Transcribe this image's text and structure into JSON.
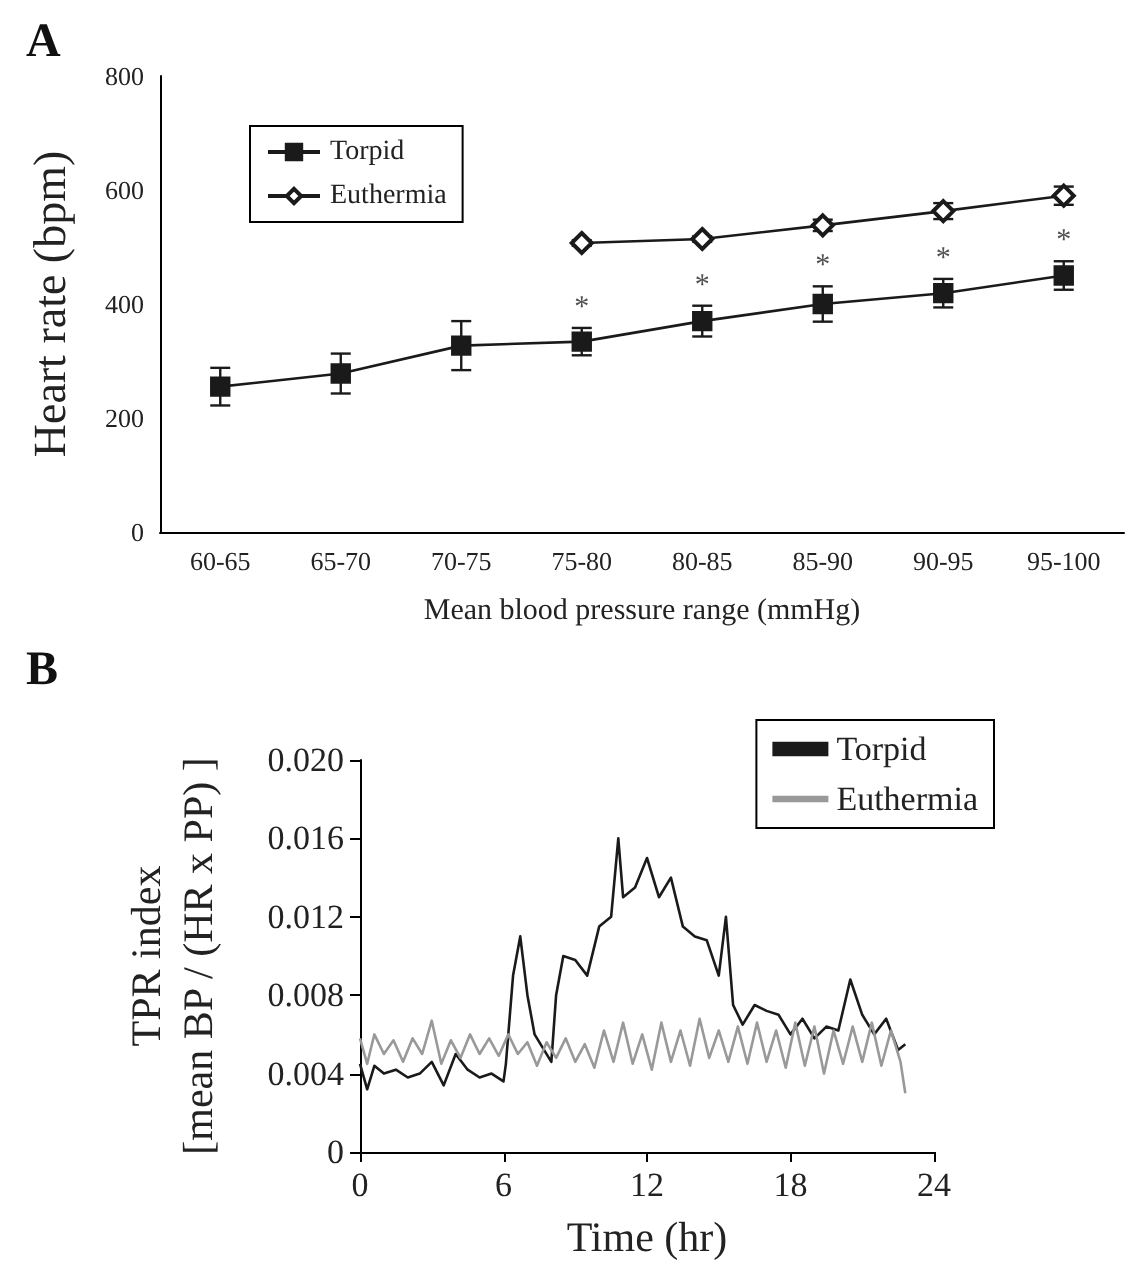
{
  "chart_data": [
    {
      "type": "line",
      "title": "A",
      "xlabel": "Mean blood pressure range (mmHg)",
      "ylabel": "Heart rate (bpm)",
      "categories": [
        "60-65",
        "65-70",
        "70-75",
        "75-80",
        "80-85",
        "85-90",
        "90-95",
        "95-100"
      ],
      "ylim": [
        0,
        800
      ],
      "yticks": [
        0,
        200,
        400,
        600,
        800
      ],
      "legend": "top left",
      "grid": false,
      "series": [
        {
          "name": "Torpid",
          "color": "#1a1a1a",
          "marker": "square",
          "values": [
            255,
            278,
            327,
            334,
            370,
            400,
            419,
            450
          ],
          "errors": [
            33,
            35,
            43,
            24,
            27,
            31,
            25,
            25
          ]
        },
        {
          "name": "Euthermia",
          "color": "#1a1a1a",
          "marker": "diamond",
          "values": [
            null,
            null,
            null,
            507,
            514,
            538,
            563,
            590
          ],
          "errors": [
            null,
            null,
            null,
            5,
            5,
            10,
            14,
            16
          ]
        }
      ],
      "annotations": [
        {
          "text": "*",
          "x": "75-80",
          "y": 358
        },
        {
          "text": "*",
          "x": "80-85",
          "y": 397
        },
        {
          "text": "*",
          "x": "85-90",
          "y": 431
        },
        {
          "text": "*",
          "x": "90-95",
          "y": 444
        },
        {
          "text": "*",
          "x": "95-100",
          "y": 475
        }
      ]
    },
    {
      "type": "line",
      "title": "B",
      "xlabel": "Time (hr)",
      "ylabel": "TPR index\n[mean BP / (HR x PP) ]",
      "xlim": [
        0,
        24
      ],
      "xticks": [
        0,
        6,
        12,
        18,
        24
      ],
      "ylim": [
        0,
        0.02
      ],
      "yticks": [
        {
          "value": 0,
          "label": "0"
        },
        {
          "value": 0.004,
          "label": "0.004"
        },
        {
          "value": 0.008,
          "label": "0.008"
        },
        {
          "value": 0.012,
          "label": "0.012"
        },
        {
          "value": 0.016,
          "label": "0.016"
        },
        {
          "value": 0.02,
          "label": "0.020"
        }
      ],
      "legend": "top right",
      "marker": "none",
      "grid": false,
      "series": [
        {
          "name": "Torpid",
          "color": "#1a1a1a",
          "x": [
            0,
            0.3,
            0.6,
            1,
            1.5,
            2,
            2.5,
            3,
            3.5,
            4,
            4.5,
            5,
            5.5,
            6,
            6.1,
            6.4,
            6.7,
            7,
            7.3,
            7.7,
            8,
            8.2,
            8.5,
            9,
            9.5,
            10,
            10.5,
            10.8,
            11,
            11.5,
            12,
            12.5,
            13,
            13.5,
            14,
            14.5,
            15,
            15.3,
            15.6,
            16,
            16.5,
            17,
            17.5,
            18,
            18.5,
            19,
            19.5,
            20,
            20.5,
            21,
            21.5,
            22,
            22.5,
            22.8
          ],
          "values": [
            0.0045,
            0.0032,
            0.0044,
            0.004,
            0.0042,
            0.0038,
            0.004,
            0.0046,
            0.0034,
            0.005,
            0.0042,
            0.0038,
            0.004,
            0.0036,
            0.0045,
            0.009,
            0.011,
            0.008,
            0.006,
            0.0052,
            0.0046,
            0.008,
            0.01,
            0.0098,
            0.009,
            0.0115,
            0.012,
            0.016,
            0.013,
            0.0135,
            0.015,
            0.013,
            0.014,
            0.0115,
            0.011,
            0.0108,
            0.009,
            0.012,
            0.0075,
            0.0065,
            0.0075,
            0.0072,
            0.007,
            0.006,
            0.0068,
            0.0058,
            0.0064,
            0.0062,
            0.0088,
            0.007,
            0.006,
            0.0068,
            0.0052,
            0.0055
          ]
        },
        {
          "name": "Euthermia",
          "color": "#999999",
          "x": [
            0,
            0.3,
            0.6,
            1,
            1.4,
            1.8,
            2.2,
            2.6,
            3,
            3.4,
            3.8,
            4.2,
            4.6,
            5,
            5.4,
            5.8,
            6.2,
            6.6,
            7,
            7.4,
            7.8,
            8.2,
            8.6,
            9,
            9.4,
            9.8,
            10.2,
            10.6,
            11,
            11.4,
            11.8,
            12.2,
            12.6,
            13,
            13.4,
            13.8,
            14.2,
            14.6,
            15,
            15.4,
            15.8,
            16.2,
            16.6,
            17,
            17.4,
            17.8,
            18.2,
            18.6,
            19,
            19.4,
            19.8,
            20.2,
            20.6,
            21,
            21.4,
            21.8,
            22.2,
            22.6,
            22.8
          ],
          "values": [
            0.0058,
            0.0045,
            0.006,
            0.005,
            0.0057,
            0.0046,
            0.0058,
            0.005,
            0.0067,
            0.0045,
            0.0057,
            0.0048,
            0.006,
            0.005,
            0.0058,
            0.0049,
            0.006,
            0.005,
            0.0056,
            0.0044,
            0.0056,
            0.0048,
            0.0058,
            0.0046,
            0.0055,
            0.0043,
            0.0062,
            0.0046,
            0.0066,
            0.0045,
            0.006,
            0.0042,
            0.0066,
            0.0046,
            0.0062,
            0.0044,
            0.0068,
            0.0048,
            0.0062,
            0.0046,
            0.0064,
            0.0045,
            0.0066,
            0.0046,
            0.0062,
            0.0043,
            0.0066,
            0.0044,
            0.0064,
            0.004,
            0.0062,
            0.0045,
            0.0064,
            0.0046,
            0.0066,
            0.0044,
            0.0062,
            0.0046,
            0.003
          ]
        }
      ]
    }
  ]
}
